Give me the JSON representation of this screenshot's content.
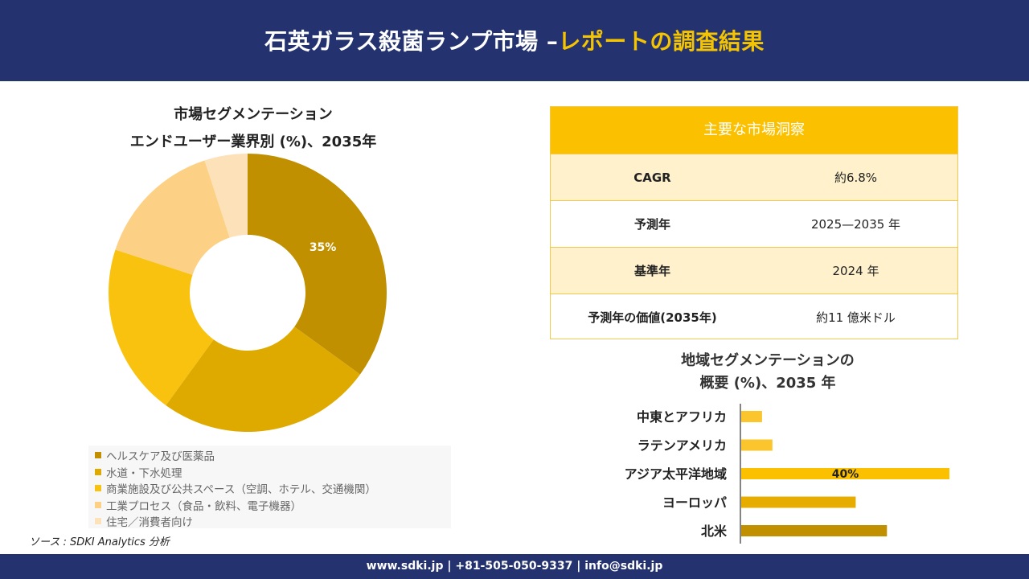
{
  "header": {
    "title_part1": "石英ガラス殺菌ランプ市場 –",
    "title_part2": "レポートの調査結果"
  },
  "segment_chart": {
    "title_line1": "市場セグメンテーション",
    "title_line2": "エンドユーザー業界別 (%)、2035年"
  },
  "insights": {
    "header": "主要な市場洞察",
    "rows": [
      {
        "label": "CAGR",
        "value": "約6.8%"
      },
      {
        "label": "予測年",
        "value": "2025—2035 年"
      },
      {
        "label": "基準年",
        "value": "2024 年"
      },
      {
        "label": "予測年の価値(2035年)",
        "value": "約11 億米ドル"
      }
    ]
  },
  "regional_chart": {
    "title_line1": "地域セグメンテーションの",
    "title_line2": "概要 (%)、2035 年"
  },
  "source": "ソース : SDKI Analytics 分析",
  "footer": "www.sdki.jp | +81-505-050-9337 | info@sdki.jp",
  "chart_data": [
    {
      "type": "pie",
      "title": "市場セグメンテーション エンドユーザー業界別 (%)、2035年",
      "donut": true,
      "categories": [
        "ヘルスケア及び医薬品",
        "水道・下水処理",
        "商業施設及び公共スペース（空調、ホテル、交通機関）",
        "工業プロセス（食品・飲料、電子機器）",
        "住宅／消費者向け"
      ],
      "values": [
        35,
        25,
        20,
        15,
        5
      ],
      "data_labels": [
        "35%",
        "",
        "",
        "",
        ""
      ],
      "colors": [
        "#c09000",
        "#dfaa00",
        "#f9c20f",
        "#fdd185",
        "#fde1b8"
      ],
      "legend_position": "bottom"
    },
    {
      "type": "bar",
      "orientation": "horizontal",
      "title": "地域セグメンテーションの概要 (%)、2035 年",
      "categories": [
        "中東とアフリカ",
        "ラテンアメリカ",
        "アジア太平洋地域",
        "ヨーロッパ",
        "北米"
      ],
      "values": [
        4,
        6,
        40,
        22,
        28
      ],
      "data_labels": [
        "",
        "",
        "40%",
        "",
        ""
      ],
      "colors": [
        "#fbc52e",
        "#fbc52e",
        "#fbc100",
        "#e6ad00",
        "#c09000"
      ],
      "xlim": [
        0,
        40
      ],
      "grid": false
    }
  ]
}
